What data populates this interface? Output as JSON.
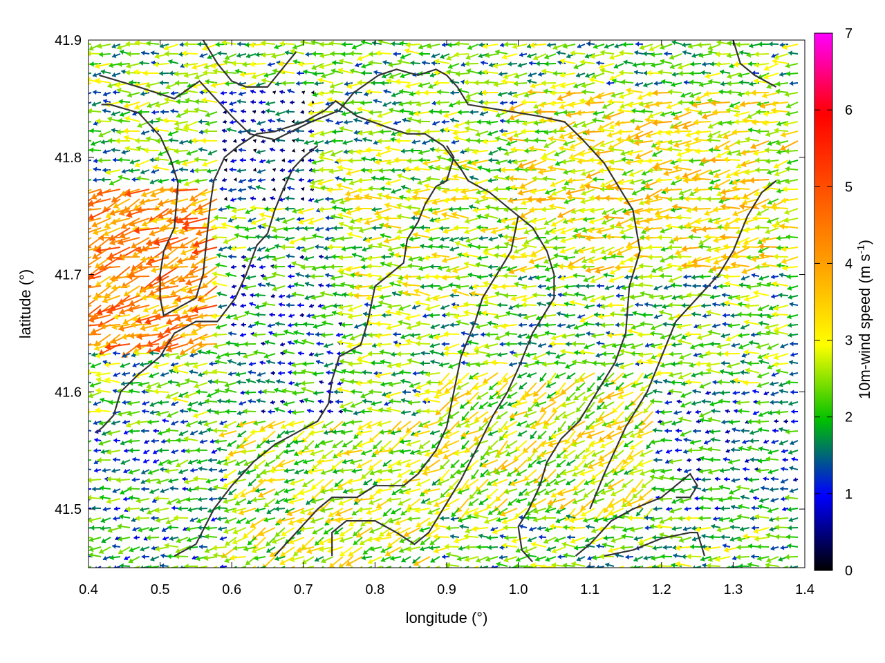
{
  "chart_data": {
    "type": "vector-field",
    "title": "",
    "xlabel": "longitude (°)",
    "ylabel": "latitude (°)",
    "xlim": [
      0.4,
      1.4
    ],
    "ylim": [
      41.45,
      41.9
    ],
    "xticks": [
      "0.4",
      "0.5",
      "0.6",
      "0.7",
      "0.8",
      "0.9",
      "1.0",
      "1.1",
      "1.2",
      "1.3",
      "1.4"
    ],
    "yticks": [
      "41.5",
      "41.6",
      "41.7",
      "41.8",
      "41.9"
    ],
    "colorbar": {
      "label": "10m-wind speed (m s",
      "label_sup": "-1",
      "label_close": ")",
      "range": [
        0,
        7
      ],
      "ticks": [
        "0",
        "1",
        "2",
        "3",
        "4",
        "5",
        "6",
        "7"
      ],
      "colors": [
        "#000000",
        "#0000ff",
        "#00c000",
        "#ffff00",
        "#ff8000",
        "#ff0000",
        "#ff00ff"
      ]
    },
    "vectors_description_note": "",
    "regions": [
      {
        "lon": [
          0.4,
          0.58
        ],
        "lat": [
          41.64,
          41.78
        ],
        "speed": 4.3,
        "dir_deg": 200
      },
      {
        "lon": [
          0.58,
          0.72
        ],
        "lat": [
          41.76,
          41.86
        ],
        "speed": 0.8,
        "dir_deg": 180
      },
      {
        "lon": [
          0.6,
          0.76
        ],
        "lat": [
          41.58,
          41.72
        ],
        "speed": 1.5,
        "dir_deg": 180
      },
      {
        "lon": [
          0.76,
          1.0
        ],
        "lat": [
          41.68,
          41.8
        ],
        "speed": 2.6,
        "dir_deg": 180
      },
      {
        "lon": [
          1.0,
          1.4
        ],
        "lat": [
          41.7,
          41.86
        ],
        "speed": 3.0,
        "dir_deg": 190
      },
      {
        "lon": [
          0.9,
          1.2
        ],
        "lat": [
          41.5,
          41.62
        ],
        "speed": 2.8,
        "dir_deg": 215
      },
      {
        "lon": [
          1.2,
          1.4
        ],
        "lat": [
          41.5,
          41.6
        ],
        "speed": 1.5,
        "dir_deg": 185
      },
      {
        "lon": [
          0.4,
          0.6
        ],
        "lat": [
          41.45,
          41.58
        ],
        "speed": 1.8,
        "dir_deg": 190
      },
      {
        "lon": [
          0.6,
          0.9
        ],
        "lat": [
          41.45,
          41.58
        ],
        "speed": 2.7,
        "dir_deg": 205
      }
    ],
    "contours": [
      [
        [
          0.415,
          41.87
        ],
        [
          0.47,
          41.86
        ],
        [
          0.52,
          41.85
        ],
        [
          0.555,
          41.865
        ],
        [
          0.6,
          41.835
        ],
        [
          0.625,
          41.82
        ],
        [
          0.66,
          41.815
        ],
        [
          0.71,
          41.83
        ],
        [
          0.75,
          41.84
        ],
        [
          0.77,
          41.855
        ],
        [
          0.805,
          41.87
        ],
        [
          0.83,
          41.875
        ],
        [
          0.86,
          41.87
        ],
        [
          0.885,
          41.875
        ],
        [
          0.9,
          41.87
        ],
        [
          0.915,
          41.86
        ],
        [
          0.93,
          41.845
        ],
        [
          0.98,
          41.84
        ],
        [
          1.03,
          41.835
        ],
        [
          1.065,
          41.83
        ],
        [
          1.09,
          41.815
        ],
        [
          1.12,
          41.795
        ],
        [
          1.145,
          41.77
        ],
        [
          1.16,
          41.755
        ],
        [
          1.17,
          41.72
        ],
        [
          1.155,
          41.69
        ],
        [
          1.15,
          41.65
        ],
        [
          1.135,
          41.625
        ],
        [
          1.11,
          41.6
        ],
        [
          1.085,
          41.575
        ],
        [
          1.06,
          41.56
        ],
        [
          1.04,
          41.54
        ],
        [
          1.03,
          41.52
        ],
        [
          1.015,
          41.5
        ],
        [
          1.0,
          41.485
        ],
        [
          1.005,
          41.465
        ],
        [
          1.02,
          41.455
        ]
      ],
      [
        [
          0.418,
          41.845
        ],
        [
          0.43,
          41.845
        ],
        [
          0.47,
          41.838
        ],
        [
          0.5,
          41.818
        ],
        [
          0.515,
          41.798
        ],
        [
          0.525,
          41.778
        ],
        [
          0.52,
          41.74
        ],
        [
          0.505,
          41.72
        ],
        [
          0.5,
          41.7
        ],
        [
          0.5,
          41.68
        ],
        [
          0.505,
          41.665
        ],
        [
          0.52,
          41.67
        ],
        [
          0.55,
          41.68
        ],
        [
          0.56,
          41.7
        ],
        [
          0.565,
          41.73
        ],
        [
          0.57,
          41.76
        ],
        [
          0.575,
          41.78
        ],
        [
          0.59,
          41.8
        ],
        [
          0.61,
          41.81
        ],
        [
          0.635,
          41.82
        ],
        [
          0.66,
          41.822
        ],
        [
          0.7,
          41.83
        ],
        [
          0.73,
          41.84
        ],
        [
          0.745,
          41.848
        ],
        [
          0.775,
          41.835
        ],
        [
          0.82,
          41.825
        ],
        [
          0.845,
          41.82
        ],
        [
          0.87,
          41.82
        ],
        [
          0.895,
          41.81
        ],
        [
          0.92,
          41.79
        ],
        [
          0.93,
          41.78
        ],
        [
          0.96,
          41.77
        ],
        [
          0.99,
          41.755
        ],
        [
          1.02,
          41.74
        ],
        [
          1.04,
          41.72
        ],
        [
          1.05,
          41.7
        ],
        [
          1.05,
          41.68
        ],
        [
          1.02,
          41.65
        ],
        [
          1.0,
          41.62
        ],
        [
          0.985,
          41.6
        ],
        [
          0.965,
          41.58
        ],
        [
          0.945,
          41.555
        ],
        [
          0.92,
          41.525
        ],
        [
          0.895,
          41.5
        ],
        [
          0.875,
          41.48
        ],
        [
          0.855,
          41.47
        ],
        [
          0.83,
          41.48
        ],
        [
          0.8,
          41.49
        ],
        [
          0.76,
          41.49
        ],
        [
          0.74,
          41.48
        ],
        [
          0.74,
          41.46
        ]
      ],
      [
        [
          0.52,
          41.46
        ],
        [
          0.55,
          41.47
        ],
        [
          0.575,
          41.5
        ],
        [
          0.6,
          41.52
        ],
        [
          0.63,
          41.54
        ],
        [
          0.66,
          41.555
        ],
        [
          0.69,
          41.565
        ],
        [
          0.72,
          41.575
        ],
        [
          0.735,
          41.59
        ],
        [
          0.74,
          41.61
        ],
        [
          0.75,
          41.63
        ],
        [
          0.78,
          41.64
        ],
        [
          0.79,
          41.66
        ],
        [
          0.8,
          41.69
        ],
        [
          0.82,
          41.7
        ],
        [
          0.84,
          41.71
        ],
        [
          0.845,
          41.73
        ],
        [
          0.86,
          41.745
        ],
        [
          0.87,
          41.76
        ],
        [
          0.885,
          41.775
        ],
        [
          0.9,
          41.78
        ],
        [
          0.91,
          41.8
        ],
        [
          0.9,
          41.81
        ]
      ],
      [
        [
          0.41,
          41.565
        ],
        [
          0.42,
          41.57
        ],
        [
          0.435,
          41.58
        ],
        [
          0.445,
          41.6
        ],
        [
          0.47,
          41.615
        ],
        [
          0.5,
          41.63
        ],
        [
          0.52,
          41.65
        ],
        [
          0.55,
          41.66
        ],
        [
          0.58,
          41.66
        ],
        [
          0.605,
          41.68
        ],
        [
          0.62,
          41.7
        ],
        [
          0.635,
          41.725
        ],
        [
          0.65,
          41.735
        ],
        [
          0.66,
          41.755
        ],
        [
          0.67,
          41.77
        ],
        [
          0.685,
          41.79
        ],
        [
          0.7,
          41.8
        ],
        [
          0.72,
          41.81
        ]
      ],
      [
        [
          0.66,
          41.46
        ],
        [
          0.69,
          41.48
        ],
        [
          0.72,
          41.5
        ],
        [
          0.74,
          41.51
        ],
        [
          0.775,
          41.51
        ],
        [
          0.8,
          41.52
        ],
        [
          0.84,
          41.52
        ],
        [
          0.86,
          41.53
        ],
        [
          0.885,
          41.55
        ],
        [
          0.9,
          41.57
        ],
        [
          0.91,
          41.6
        ],
        [
          0.92,
          41.63
        ],
        [
          0.94,
          41.66
        ],
        [
          0.95,
          41.68
        ],
        [
          0.97,
          41.7
        ],
        [
          0.99,
          41.72
        ],
        [
          1.0,
          41.75
        ]
      ],
      [
        [
          1.08,
          41.46
        ],
        [
          1.1,
          41.47
        ],
        [
          1.13,
          41.49
        ],
        [
          1.16,
          41.5
        ],
        [
          1.2,
          41.51
        ],
        [
          1.24,
          41.53
        ],
        [
          1.25,
          41.52
        ],
        [
          1.24,
          41.51
        ],
        [
          1.22,
          41.51
        ]
      ],
      [
        [
          1.12,
          41.46
        ],
        [
          1.16,
          41.465
        ],
        [
          1.2,
          41.475
        ],
        [
          1.24,
          41.48
        ],
        [
          1.25,
          41.48
        ],
        [
          1.26,
          41.46
        ]
      ],
      [
        [
          1.1,
          41.5
        ],
        [
          1.12,
          41.53
        ],
        [
          1.15,
          41.57
        ],
        [
          1.18,
          41.6
        ],
        [
          1.2,
          41.63
        ],
        [
          1.22,
          41.66
        ],
        [
          1.25,
          41.68
        ],
        [
          1.28,
          41.7
        ],
        [
          1.3,
          41.72
        ],
        [
          1.32,
          41.75
        ],
        [
          1.34,
          41.77
        ],
        [
          1.36,
          41.78
        ]
      ],
      [
        [
          1.3,
          41.9
        ],
        [
          1.31,
          41.88
        ],
        [
          1.33,
          41.87
        ],
        [
          1.36,
          41.86
        ]
      ],
      [
        [
          0.56,
          41.9
        ],
        [
          0.58,
          41.88
        ],
        [
          0.6,
          41.865
        ],
        [
          0.62,
          41.86
        ],
        [
          0.65,
          41.86
        ],
        [
          0.67,
          41.875
        ],
        [
          0.69,
          41.89
        ]
      ]
    ]
  }
}
